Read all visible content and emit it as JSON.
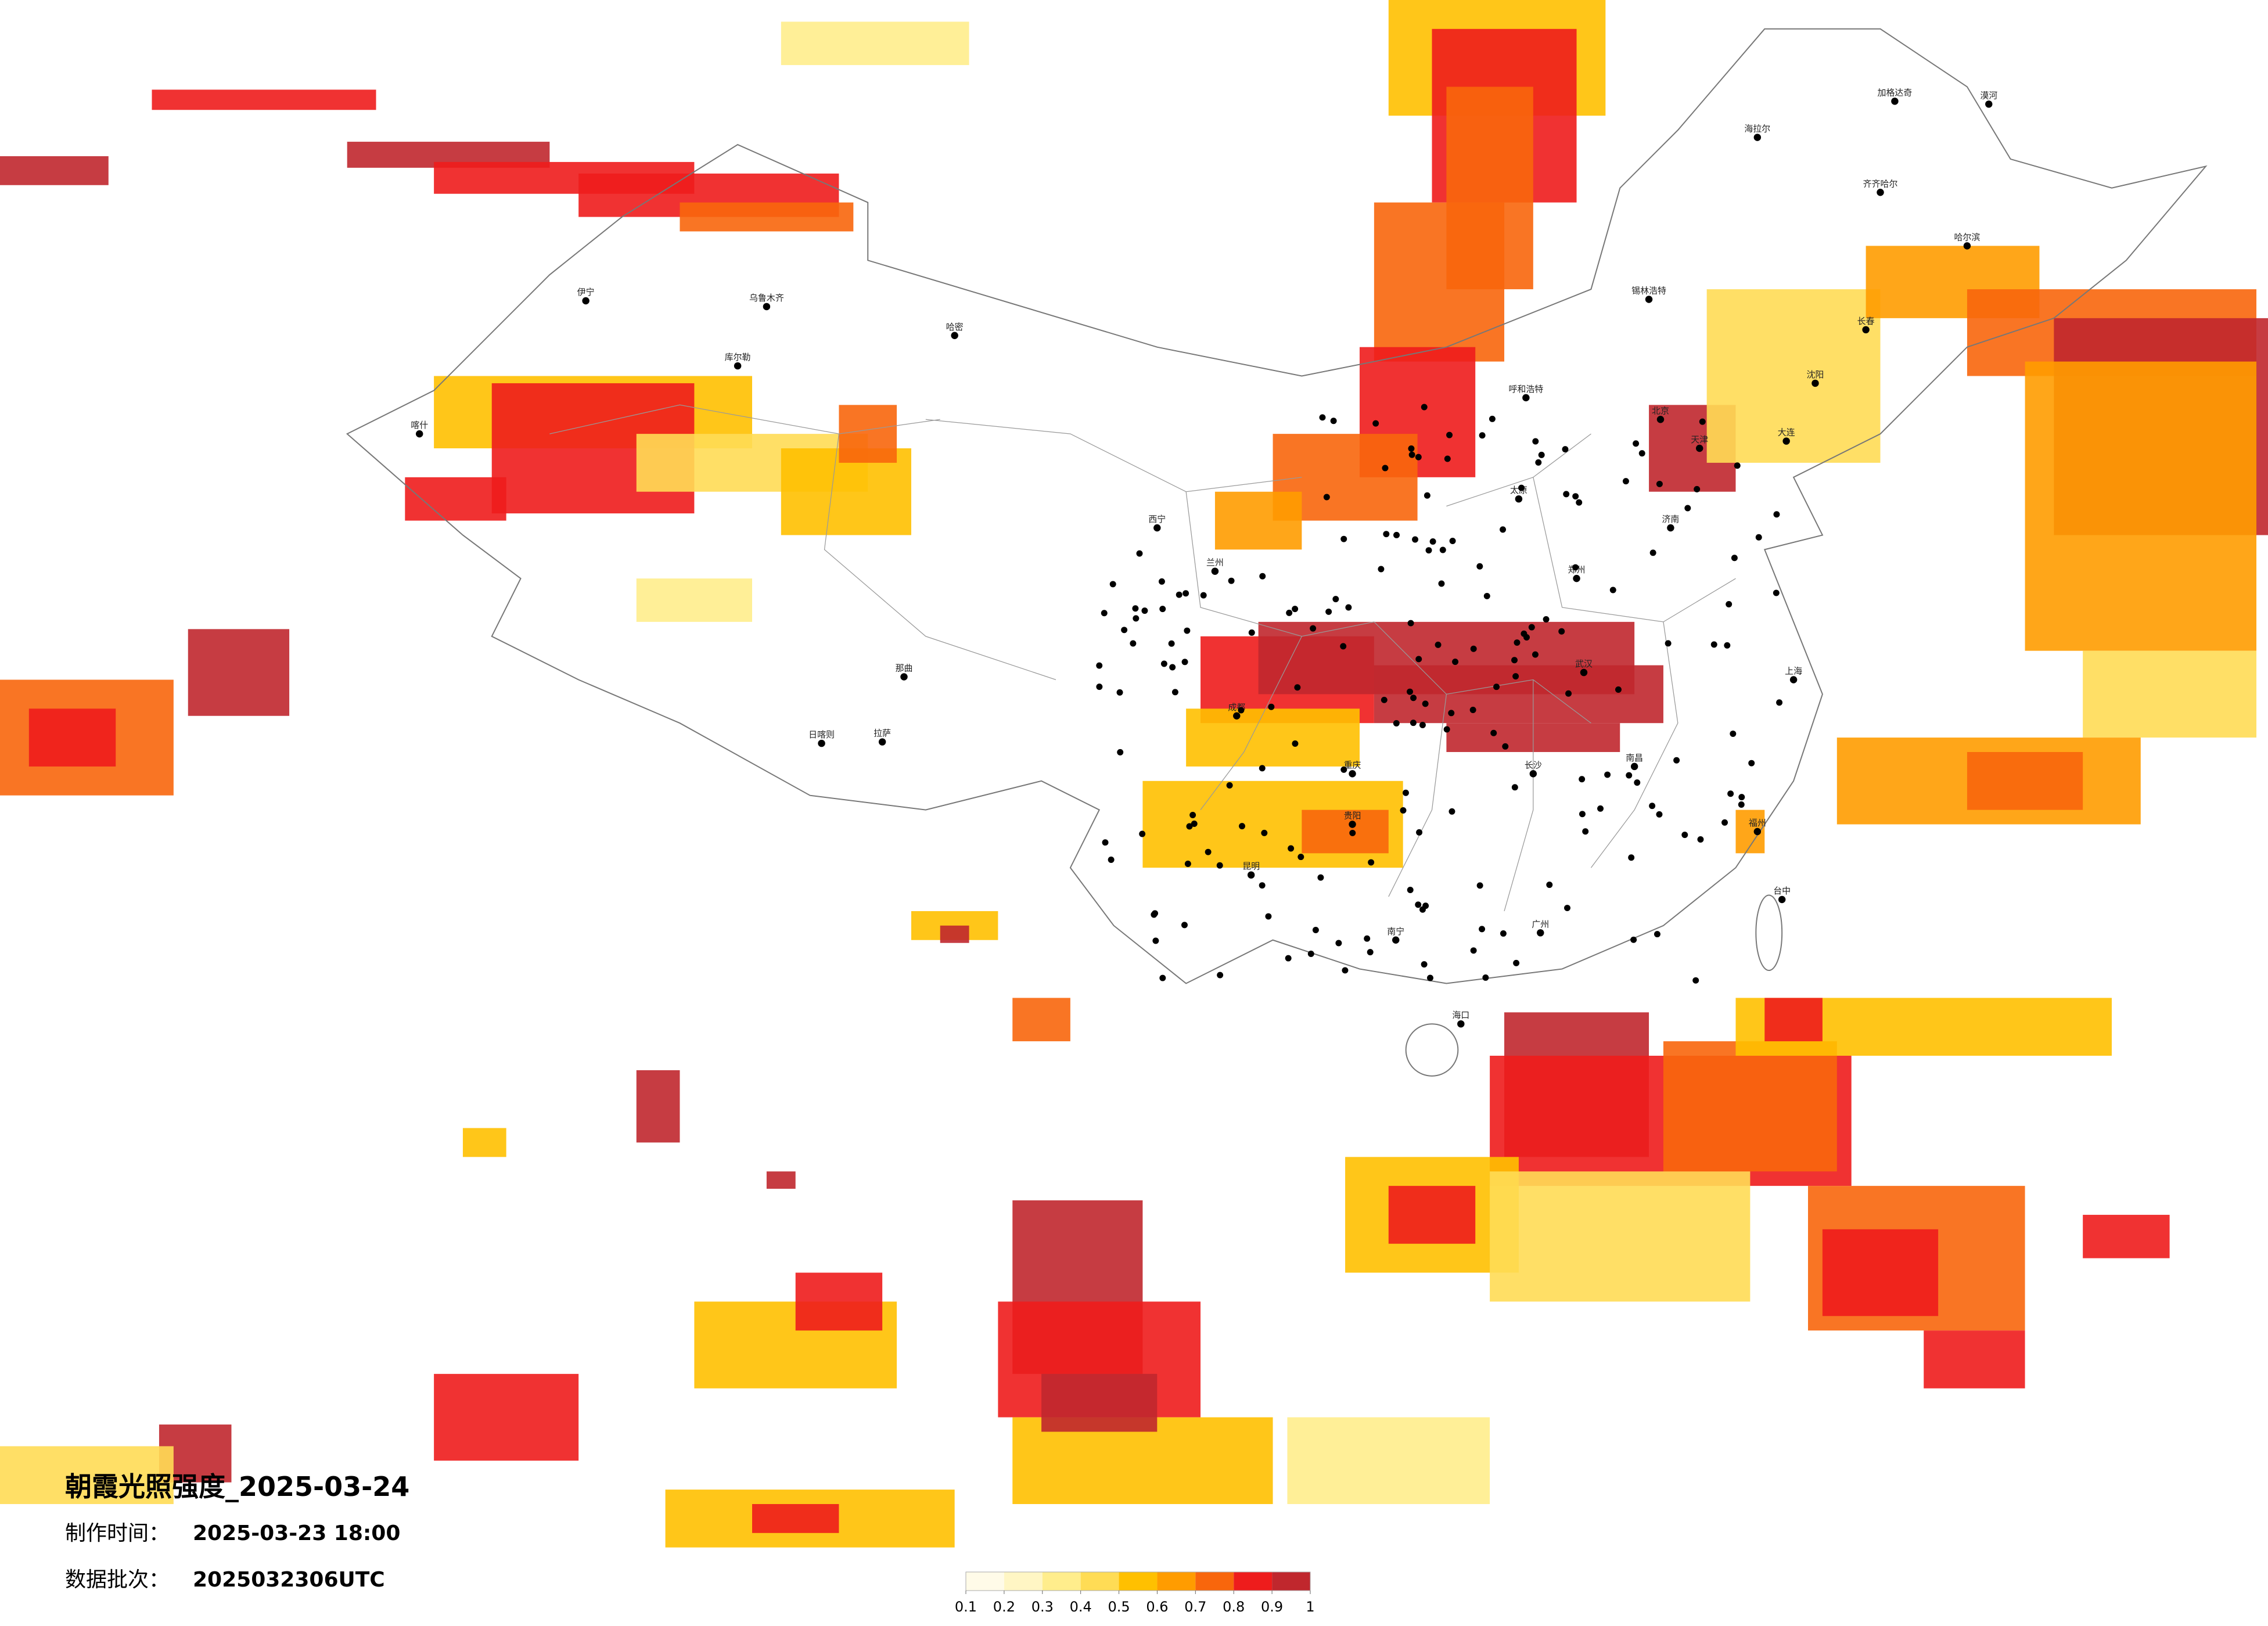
{
  "title": "朝霞光照强度_2025-03-24",
  "made_time_label": "制作时间：",
  "made_time": "2025-03-23 18:00",
  "batch_label": "数据批次：",
  "batch": "2025032306UTC",
  "legend": {
    "ticks": [
      0.1,
      0.2,
      0.3,
      0.4,
      0.5,
      0.6,
      0.7,
      0.8,
      0.9,
      1
    ],
    "colors": [
      "#fffbe8",
      "#fff6c4",
      "#ffed8c",
      "#ffdc55",
      "#ffc000",
      "#ff9c00",
      "#f8660c",
      "#ee1c1c",
      "#c0272d"
    ]
  },
  "cities": [
    "漠河",
    "加格达奇",
    "海拉尔",
    "齐齐哈尔",
    "哈尔滨",
    "长春",
    "沈阳",
    "大连",
    "锡林浩特",
    "呼和浩特",
    "北京",
    "天津",
    "济南",
    "太原",
    "郑州",
    "武汉",
    "长沙",
    "南昌",
    "上海",
    "福州",
    "台中",
    "广州",
    "南宁",
    "海口",
    "贵阳",
    "昆明",
    "成都",
    "重庆",
    "兰州",
    "西宁",
    "乌鲁木齐",
    "伊宁",
    "库尔勒",
    "哈密",
    "喀什",
    "拉萨",
    "日喀则",
    "那曲"
  ]
}
